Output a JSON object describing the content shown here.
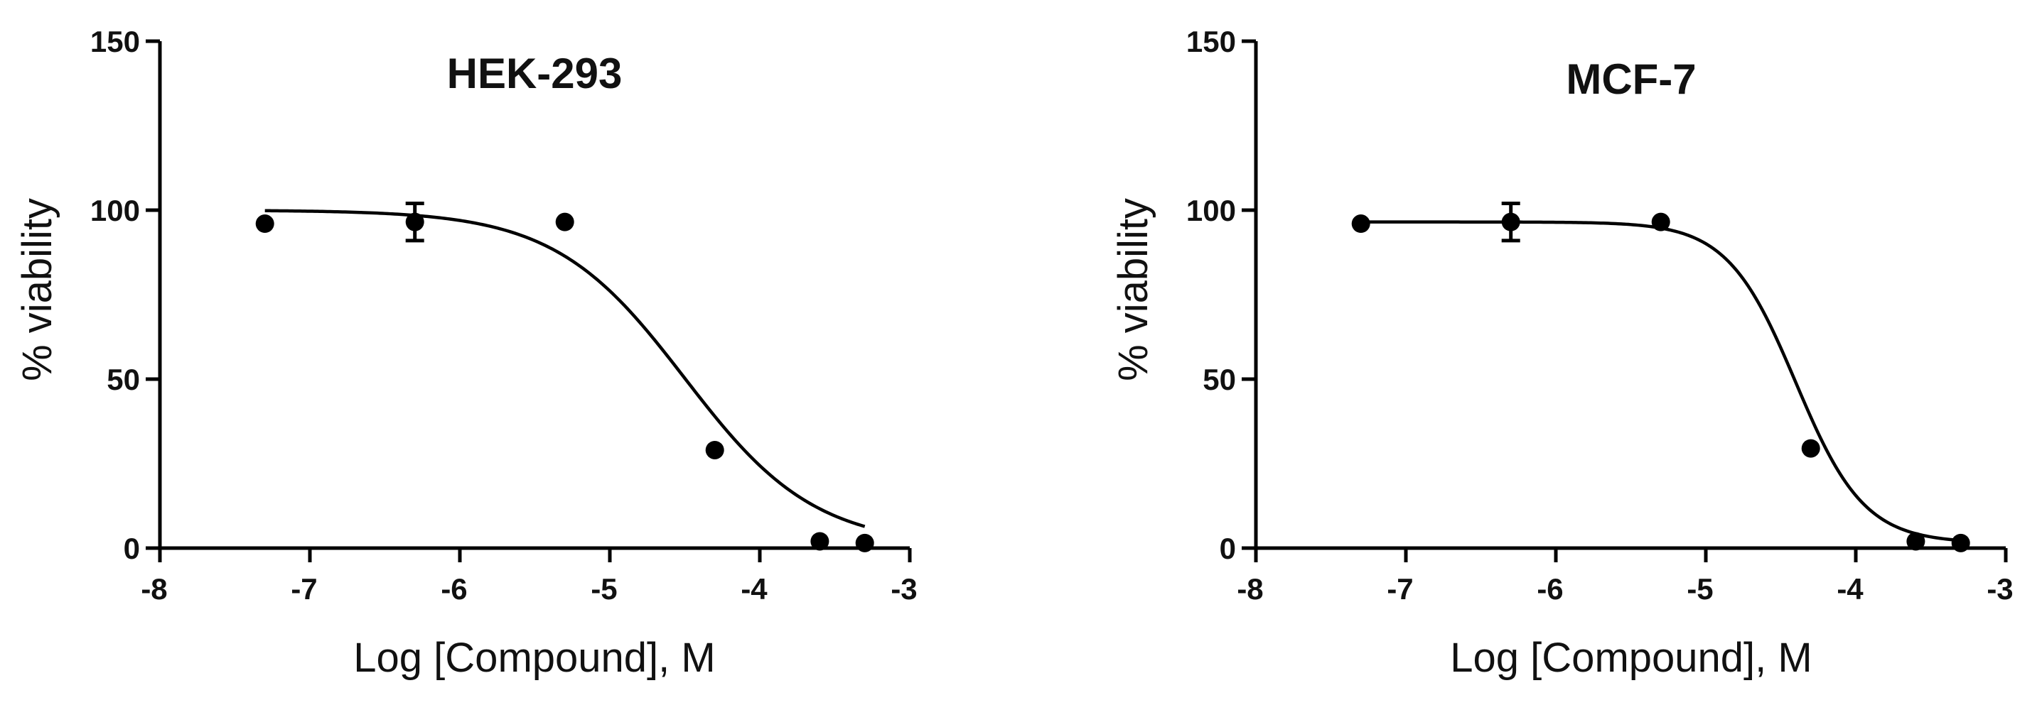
{
  "chart_data": [
    {
      "type": "scatter",
      "title": "HEK-293",
      "xlabel": "Log [Compound], M",
      "ylabel": "% viability",
      "xlim": [
        -8,
        -3
      ],
      "ylim": [
        0,
        150
      ],
      "xticks": [
        "-8",
        "-7",
        "-6",
        "-5",
        "-4",
        "-3"
      ],
      "yticks": [
        "0",
        "50",
        "100",
        "150"
      ],
      "grid": false,
      "series": [
        {
          "x": [
            -7.3,
            -6.3,
            -5.3,
            -4.3,
            -3.6,
            -3.3
          ],
          "y": [
            96,
            96.5,
            96.5,
            29,
            2,
            1.5
          ],
          "error": [
            0,
            5.5,
            0,
            0,
            0,
            0
          ]
        }
      ],
      "fit": {
        "model": "sigmoidal dose-response",
        "top": 100,
        "bottom": 0.5,
        "log_ic50": -4.5,
        "hill_slope": -1.0,
        "x_range": [
          -7.3,
          -3.3
        ]
      },
      "color": "#000000"
    },
    {
      "type": "scatter",
      "title": "MCF-7",
      "xlabel": "Log [Compound], M",
      "ylabel": "% viability",
      "xlim": [
        -8,
        -3
      ],
      "ylim": [
        0,
        150
      ],
      "xticks": [
        "-8",
        "-7",
        "-6",
        "-5",
        "-4",
        "-3"
      ],
      "yticks": [
        "0",
        "50",
        "100",
        "150"
      ],
      "grid": false,
      "series": [
        {
          "x": [
            -7.3,
            -6.3,
            -5.3,
            -4.3,
            -3.6,
            -3.3
          ],
          "y": [
            96,
            96.5,
            96.5,
            29.5,
            2,
            1.5
          ],
          "error": [
            0,
            5.5,
            0,
            0,
            0,
            0
          ]
        }
      ],
      "fit": {
        "model": "sigmoidal dose-response",
        "top": 96.5,
        "bottom": 1.5,
        "log_ic50": -4.4,
        "hill_slope": -1.9,
        "x_range": [
          -7.3,
          -3.3
        ]
      },
      "color": "#000000"
    }
  ]
}
